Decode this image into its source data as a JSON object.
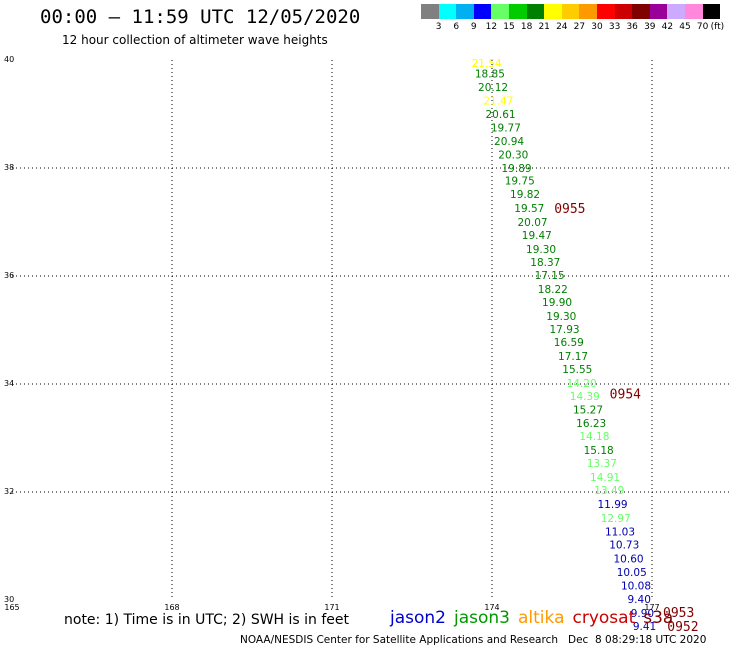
{
  "header": {
    "title": "00:00 – 11:59 UTC 12/05/2020",
    "subtitle": "12 hour collection of altimeter wave heights"
  },
  "legend": {
    "colors": [
      "#808080",
      "#00ffff",
      "#00b0f0",
      "#0000ff",
      "#66ff66",
      "#00cc00",
      "#008000",
      "#ffff00",
      "#ffcc00",
      "#ff9900",
      "#ff0000",
      "#cc0000",
      "#800000",
      "#990099",
      "#ccaaff",
      "#ff88dd",
      "#000000"
    ],
    "labels": [
      "3",
      "6",
      "9",
      "12",
      "15",
      "18",
      "21",
      "24",
      "27",
      "30",
      "33",
      "36",
      "39",
      "42",
      "45",
      "70"
    ],
    "unit": "(ft)"
  },
  "chart_data": {
    "type": "scatter",
    "xlim": [
      165,
      178.5
    ],
    "ylim": [
      30,
      40
    ],
    "x_ticks": [
      {
        "value": 165,
        "label": "165"
      },
      {
        "value": 168,
        "label": "168"
      },
      {
        "value": 171,
        "label": "171"
      },
      {
        "value": 174,
        "label": "174"
      },
      {
        "value": 177,
        "label": "177"
      }
    ],
    "y_ticks": [
      {
        "value": 40,
        "label": "40"
      },
      {
        "value": 38,
        "label": "38"
      },
      {
        "value": 36,
        "label": "36"
      },
      {
        "value": 34,
        "label": "34"
      },
      {
        "value": 32,
        "label": "32"
      },
      {
        "value": 30,
        "label": "30"
      }
    ],
    "grid": true,
    "points": [
      {
        "lon": 173.9,
        "lat": 39.94,
        "value": "21.54",
        "color": "#ffff00"
      },
      {
        "lon": 173.96,
        "lat": 39.75,
        "value": "18.85",
        "color": "#008000"
      },
      {
        "lon": 174.02,
        "lat": 39.5,
        "value": "20.12",
        "color": "#008000"
      },
      {
        "lon": 174.12,
        "lat": 39.25,
        "value": "21.47",
        "color": "#ffff00"
      },
      {
        "lon": 174.16,
        "lat": 39.0,
        "value": "20.61",
        "color": "#008000"
      },
      {
        "lon": 174.26,
        "lat": 38.75,
        "value": "19.77",
        "color": "#008000"
      },
      {
        "lon": 174.32,
        "lat": 38.5,
        "value": "20.94",
        "color": "#008000"
      },
      {
        "lon": 174.4,
        "lat": 38.25,
        "value": "20.30",
        "color": "#008000"
      },
      {
        "lon": 174.46,
        "lat": 38.0,
        "value": "19.89",
        "color": "#008000"
      },
      {
        "lon": 174.52,
        "lat": 37.77,
        "value": "19.75",
        "color": "#008000"
      },
      {
        "lon": 174.62,
        "lat": 37.52,
        "value": "19.82",
        "color": "#008000"
      },
      {
        "lon": 174.7,
        "lat": 37.26,
        "value": "19.57",
        "color": "#008000"
      },
      {
        "lon": 174.76,
        "lat": 37.0,
        "value": "20.07",
        "color": "#008000"
      },
      {
        "lon": 174.84,
        "lat": 36.76,
        "value": "19.47",
        "color": "#008000"
      },
      {
        "lon": 174.92,
        "lat": 36.5,
        "value": "19.30",
        "color": "#008000"
      },
      {
        "lon": 175.0,
        "lat": 36.26,
        "value": "18.37",
        "color": "#008000"
      },
      {
        "lon": 175.08,
        "lat": 36.02,
        "value": "17.15",
        "color": "#008000"
      },
      {
        "lon": 175.14,
        "lat": 35.76,
        "value": "18.22",
        "color": "#008000"
      },
      {
        "lon": 175.22,
        "lat": 35.52,
        "value": "19.90",
        "color": "#008000"
      },
      {
        "lon": 175.3,
        "lat": 35.26,
        "value": "19.30",
        "color": "#008000"
      },
      {
        "lon": 175.36,
        "lat": 35.02,
        "value": "17.93",
        "color": "#008000"
      },
      {
        "lon": 175.44,
        "lat": 34.78,
        "value": "16.59",
        "color": "#008000"
      },
      {
        "lon": 175.52,
        "lat": 34.52,
        "value": "17.17",
        "color": "#008000"
      },
      {
        "lon": 175.6,
        "lat": 34.28,
        "value": "15.55",
        "color": "#008000"
      },
      {
        "lon": 175.68,
        "lat": 34.02,
        "value": "14.20",
        "color": "#66ff66"
      },
      {
        "lon": 175.74,
        "lat": 33.78,
        "value": "14.39",
        "color": "#66ff66"
      },
      {
        "lon": 175.8,
        "lat": 33.53,
        "value": "15.27",
        "color": "#008000"
      },
      {
        "lon": 175.86,
        "lat": 33.28,
        "value": "16.23",
        "color": "#008000"
      },
      {
        "lon": 175.92,
        "lat": 33.04,
        "value": "14.18",
        "color": "#66ff66"
      },
      {
        "lon": 176.0,
        "lat": 32.78,
        "value": "15.18",
        "color": "#008000"
      },
      {
        "lon": 176.06,
        "lat": 32.54,
        "value": "13.37",
        "color": "#66ff66"
      },
      {
        "lon": 176.12,
        "lat": 32.28,
        "value": "14.91",
        "color": "#66ff66"
      },
      {
        "lon": 176.2,
        "lat": 32.04,
        "value": "13.49",
        "color": "#66ff66"
      },
      {
        "lon": 176.26,
        "lat": 31.78,
        "value": "11.99",
        "color": "#0000b0"
      },
      {
        "lon": 176.32,
        "lat": 31.52,
        "value": "12.97",
        "color": "#66ff66"
      },
      {
        "lon": 176.4,
        "lat": 31.27,
        "value": "11.03",
        "color": "#0000b0"
      },
      {
        "lon": 176.48,
        "lat": 31.03,
        "value": "10.73",
        "color": "#0000b0"
      },
      {
        "lon": 176.56,
        "lat": 30.77,
        "value": "10.60",
        "color": "#0000b0"
      },
      {
        "lon": 176.62,
        "lat": 30.52,
        "value": "10.05",
        "color": "#0000b0"
      },
      {
        "lon": 176.7,
        "lat": 30.27,
        "value": "10.08",
        "color": "#0000b0"
      },
      {
        "lon": 176.76,
        "lat": 30.02,
        "value": "9.40",
        "color": "#0000b0"
      },
      {
        "lon": 176.82,
        "lat": 29.76,
        "value": "9.90",
        "color": "#0000b0"
      },
      {
        "lon": 176.86,
        "lat": 29.52,
        "value": "9.41",
        "color": "#0000b0"
      }
    ],
    "time_labels": [
      {
        "lon": 175.46,
        "lat": 37.26,
        "text": "0955",
        "color": "#800000"
      },
      {
        "lon": 176.5,
        "lat": 33.82,
        "text": "0954",
        "color": "#800000"
      },
      {
        "lon": 177.5,
        "lat": 29.78,
        "text": "0953",
        "color": "#800000"
      },
      {
        "lon": 177.58,
        "lat": 29.52,
        "text": "0952",
        "color": "#800000"
      }
    ]
  },
  "note": "note: 1) Time is in UTC; 2) SWH is in feet",
  "satellites": [
    {
      "name": "jason2",
      "color": "#0000cc"
    },
    {
      "name": "jason3",
      "color": "#009900"
    },
    {
      "name": "altika",
      "color": "#ff9900"
    },
    {
      "name": "cryosat",
      "color": "#cc0000"
    },
    {
      "name": "s3a",
      "color": "#800000"
    }
  ],
  "footer": "NOAA/NESDIS Center for Satellite Applications and Research   Dec  8 08:29:18 UTC 2020"
}
